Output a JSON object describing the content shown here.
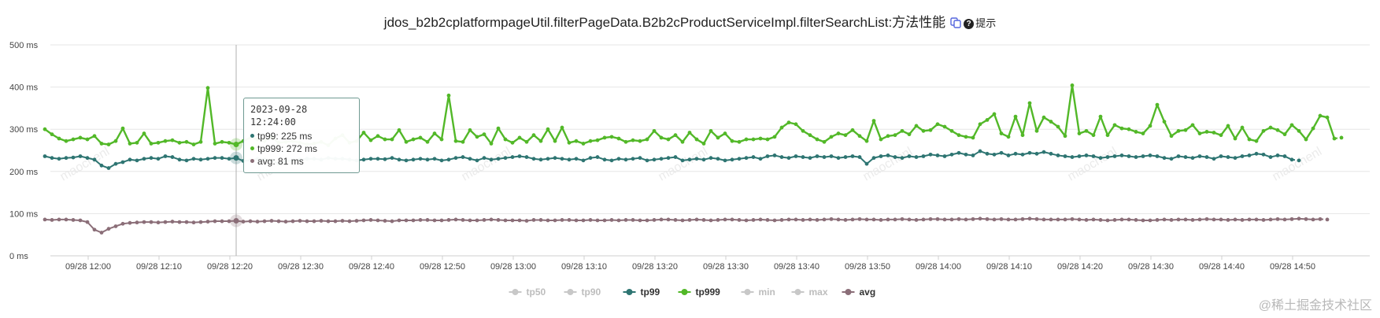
{
  "header": {
    "title": "jdos_b2b2cplatformpageUtil.filterPageData.B2b2cProductServiceImpl.filterSearchList:方法性能",
    "hint_label": "提示",
    "hint_icon": "?"
  },
  "watermark": {
    "brand": "@稀土掘金技术社区",
    "text": "maochenl"
  },
  "colors": {
    "tp50": "#c8c8c8",
    "tp90": "#c8c8c8",
    "tp99": "#2e7572",
    "tp999": "#52b828",
    "min": "#c8c8c8",
    "max": "#c8c8c8",
    "avg": "#8b6e78",
    "grid": "#e6e6e6",
    "crosshair": "#b0b0b0"
  },
  "tooltip": {
    "time": "2023-09-28 12:24:00",
    "tp99": "tp99: 225 ms",
    "tp999": "tp999: 272 ms",
    "avg": "avg: 81 ms"
  },
  "legend": [
    {
      "key": "tp50",
      "label": "tp50",
      "active": false
    },
    {
      "key": "tp90",
      "label": "tp90",
      "active": false
    },
    {
      "key": "tp99",
      "label": "tp99",
      "active": true
    },
    {
      "key": "tp999",
      "label": "tp999",
      "active": true
    },
    {
      "key": "min",
      "label": "min",
      "active": false
    },
    {
      "key": "max",
      "label": "max",
      "active": false
    },
    {
      "key": "avg",
      "label": "avg",
      "active": true
    }
  ],
  "chart_data": {
    "type": "line",
    "title": "jdos_b2b2cplatformpageUtil.filterPageData.B2b2cProductServiceImpl.filterSearchList:方法性能",
    "xlabel": "",
    "ylabel": "",
    "ylim": [
      0,
      500
    ],
    "y_ticks": [
      0,
      100,
      200,
      300,
      400,
      500
    ],
    "y_tick_labels": [
      "0 ms",
      "100 ms",
      "200 ms",
      "300 ms",
      "400 ms",
      "500 ms"
    ],
    "x_start_minute": 717,
    "x_end_minute": 898,
    "x_tick_minutes": [
      720,
      730,
      740,
      750,
      760,
      770,
      780,
      790,
      800,
      810,
      820,
      830,
      840,
      850,
      860,
      870,
      880,
      890
    ],
    "x_tick_labels": [
      "09/28 12:00",
      "09/28 12:10",
      "09/28 12:20",
      "09/28 12:30",
      "09/28 12:40",
      "09/28 12:50",
      "09/28 13:00",
      "09/28 13:10",
      "09/28 13:20",
      "09/28 13:30",
      "09/28 13:40",
      "09/28 13:50",
      "09/28 14:00",
      "09/28 14:10",
      "09/28 14:20",
      "09/28 14:30",
      "09/28 14:40",
      "09/28 14:50"
    ],
    "highlight_minute": 744,
    "grid": true,
    "legend_position": "bottom-center",
    "series": [
      {
        "name": "tp99",
        "values": [
          236,
          232,
          230,
          232,
          233,
          236,
          232,
          228,
          214,
          208,
          218,
          222,
          228,
          226,
          230,
          232,
          230,
          236,
          234,
          228,
          226,
          230,
          228,
          230,
          232,
          232,
          230,
          232,
          225,
          226,
          230,
          228,
          226,
          218,
          224,
          226,
          228,
          230,
          230,
          228,
          232,
          230,
          230,
          228,
          226,
          228,
          230,
          230,
          229,
          232,
          228,
          226,
          228,
          230,
          228,
          230,
          226,
          228,
          232,
          234,
          230,
          226,
          232,
          228,
          230,
          232,
          234,
          236,
          234,
          230,
          228,
          230,
          232,
          230,
          228,
          230,
          226,
          232,
          234,
          228,
          226,
          230,
          228,
          230,
          232,
          226,
          228,
          230,
          232,
          234,
          226,
          228,
          230,
          228,
          232,
          230,
          226,
          228,
          230,
          232,
          234,
          230,
          236,
          238,
          234,
          232,
          236,
          234,
          232,
          236,
          234,
          236,
          232,
          234,
          236,
          234,
          218,
          232,
          236,
          238,
          234,
          232,
          236,
          234,
          236,
          240,
          238,
          236,
          240,
          244,
          240,
          238,
          248,
          242,
          240,
          244,
          238,
          242,
          240,
          244,
          242,
          246,
          242,
          238,
          236,
          234,
          236,
          238,
          236,
          232,
          234,
          236,
          238,
          236,
          234,
          236,
          238,
          236,
          232,
          230,
          236,
          234,
          232,
          236,
          234,
          230,
          236,
          234,
          232,
          236,
          238,
          242,
          240,
          234,
          238,
          236,
          228,
          226
        ]
      },
      {
        "name": "tp999",
        "values": [
          300,
          288,
          278,
          272,
          276,
          280,
          276,
          284,
          266,
          264,
          272,
          302,
          266,
          268,
          290,
          266,
          268,
          272,
          274,
          268,
          270,
          264,
          270,
          398,
          266,
          270,
          268,
          264,
          272,
          280,
          276,
          272,
          282,
          268,
          270,
          272,
          268,
          264,
          266,
          270,
          262,
          278,
          286,
          268,
          272,
          292,
          274,
          284,
          276,
          276,
          298,
          270,
          276,
          280,
          270,
          290,
          276,
          380,
          272,
          270,
          298,
          282,
          288,
          266,
          302,
          276,
          268,
          280,
          270,
          286,
          272,
          300,
          272,
          304,
          268,
          272,
          266,
          272,
          274,
          280,
          282,
          278,
          270,
          274,
          272,
          276,
          296,
          280,
          276,
          286,
          270,
          292,
          276,
          266,
          296,
          280,
          290,
          272,
          270,
          276,
          276,
          278,
          276,
          282,
          304,
          316,
          312,
          296,
          286,
          276,
          270,
          282,
          290,
          286,
          298,
          284,
          272,
          320,
          276,
          284,
          286,
          296,
          288,
          308,
          296,
          298,
          312,
          306,
          296,
          286,
          282,
          280,
          312,
          322,
          336,
          290,
          282,
          330,
          286,
          362,
          296,
          328,
          318,
          306,
          284,
          404,
          290,
          296,
          286,
          330,
          286,
          310,
          302,
          300,
          294,
          290,
          308,
          358,
          318,
          284,
          296,
          298,
          310,
          290,
          294,
          292,
          286,
          308,
          278,
          304,
          276,
          272,
          296,
          304,
          298,
          288,
          310,
          296,
          276,
          302,
          332,
          328,
          278,
          280
        ]
      },
      {
        "name": "avg",
        "values": [
          86,
          85,
          86,
          86,
          85,
          84,
          80,
          62,
          55,
          64,
          70,
          76,
          78,
          79,
          80,
          80,
          79,
          80,
          81,
          80,
          80,
          79,
          80,
          81,
          82,
          82,
          82,
          83,
          81,
          82,
          81,
          82,
          83,
          82,
          81,
          82,
          83,
          82,
          82,
          83,
          82,
          82,
          83,
          82,
          83,
          84,
          85,
          84,
          83,
          82,
          84,
          84,
          84,
          85,
          85,
          84,
          84,
          85,
          86,
          85,
          84,
          84,
          85,
          86,
          85,
          84,
          84,
          84,
          83,
          85,
          85,
          84,
          84,
          85,
          85,
          84,
          84,
          85,
          84,
          84,
          85,
          84,
          85,
          85,
          84,
          84,
          85,
          86,
          86,
          85,
          84,
          85,
          86,
          85,
          84,
          85,
          86,
          86,
          85,
          84,
          85,
          86,
          85,
          84,
          85,
          86,
          86,
          85,
          86,
          85,
          86,
          87,
          86,
          85,
          86,
          87,
          86,
          86,
          85,
          86,
          86,
          87,
          86,
          85,
          86,
          87,
          87,
          86,
          86,
          87,
          86,
          87,
          88,
          87,
          86,
          87,
          86,
          86,
          87,
          88,
          87,
          86,
          86,
          86,
          86,
          87,
          86,
          85,
          86,
          85,
          84,
          85,
          86,
          86,
          85,
          84,
          84,
          85,
          86,
          85,
          86,
          86,
          85,
          86,
          87,
          86,
          86,
          85,
          86,
          85,
          86,
          86,
          85,
          86,
          87,
          86,
          87,
          88,
          87,
          86,
          87,
          86
        ]
      }
    ]
  }
}
